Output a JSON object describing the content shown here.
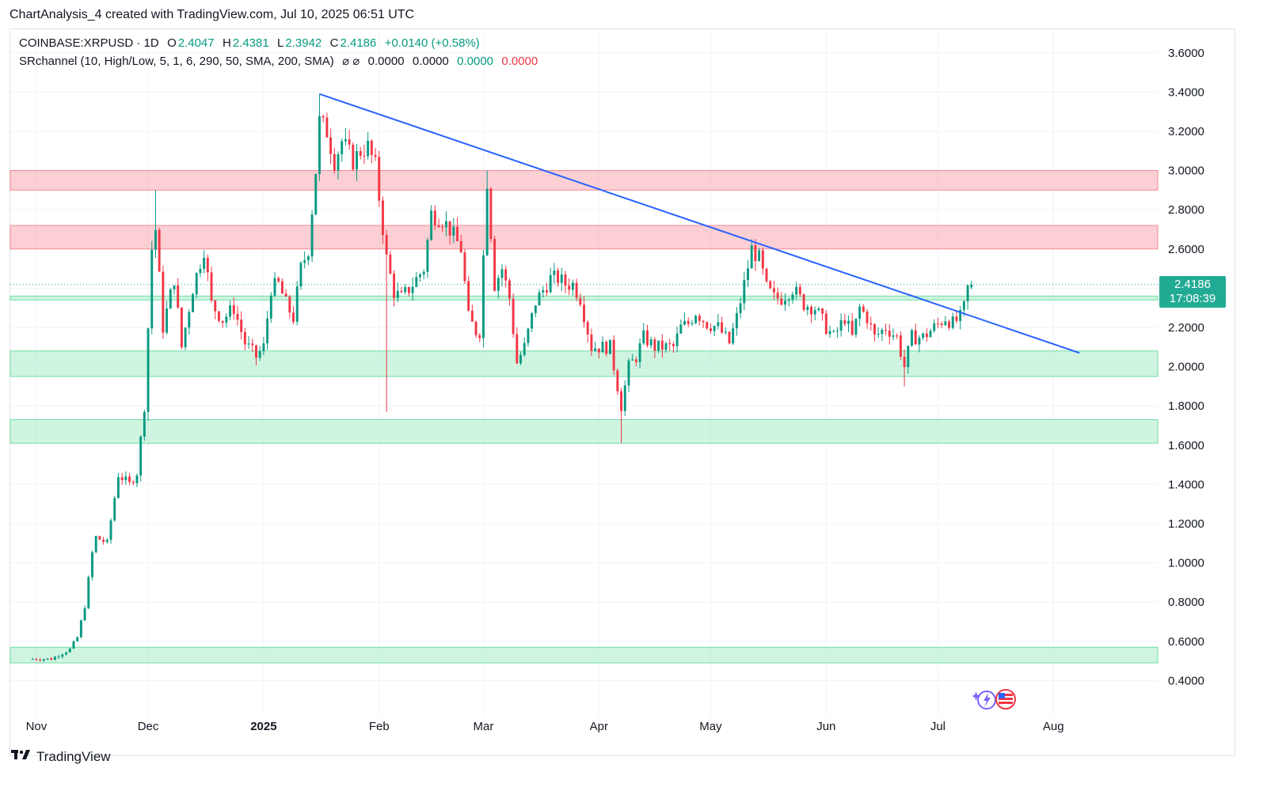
{
  "credit": "ChartAnalysis_4 created with TradingView.com, Jul 10, 2025 06:51 UTC",
  "legend": {
    "symbol": "COINBASE:XRPUSD · 1D",
    "o_label": "O",
    "o_value": "2.4047",
    "h_label": "H",
    "h_value": "2.4381",
    "l_label": "L",
    "l_value": "2.3942",
    "c_label": "C",
    "c_value": "2.4186",
    "change": "+0.0140 (+0.58%)",
    "indicator": "SRchannel (10, High/Low, 5, 1, 6, 290, 50, SMA, 200, SMA)",
    "ind_icons": "⌀ ⌀",
    "ind_v1": "0.0000",
    "ind_v2": "0.0000",
    "ind_v3": "0.0000",
    "ind_v4": "0.0000"
  },
  "price_badge": {
    "price": "2.4186",
    "countdown": "17:08:39"
  },
  "footer": {
    "brand": "TradingView",
    "logo_icon": "tradingview-logo-icon"
  },
  "colors": {
    "up": "#089981",
    "down": "#f23645",
    "trendline": "#2962ff",
    "resistance_zone": "#f7a8ae",
    "support_zone": "#a8ecc8"
  },
  "chart_data": {
    "type": "candlestick",
    "symbol": "COINBASE:XRPUSD",
    "interval": "1D",
    "y_axis": {
      "ticks": [
        "3.6000",
        "3.4000",
        "3.2000",
        "3.0000",
        "2.8000",
        "2.6000",
        "2.4000",
        "2.2000",
        "2.0000",
        "1.8000",
        "1.6000",
        "1.4000",
        "1.2000",
        "1.0000",
        "0.8000",
        "0.6000",
        "0.4000"
      ],
      "ylim": [
        0.22,
        3.72
      ],
      "side": "right"
    },
    "x_axis": {
      "ticks": [
        {
          "label": "Nov",
          "date": "2024-11-01"
        },
        {
          "label": "Dec",
          "date": "2024-12-01"
        },
        {
          "label": "2025",
          "date": "2025-01-01",
          "bold": true
        },
        {
          "label": "Feb",
          "date": "2025-02-01"
        },
        {
          "label": "Mar",
          "date": "2025-03-01"
        },
        {
          "label": "Apr",
          "date": "2025-04-01"
        },
        {
          "label": "May",
          "date": "2025-05-01"
        },
        {
          "label": "Jun",
          "date": "2025-06-01"
        },
        {
          "label": "Jul",
          "date": "2025-07-01"
        },
        {
          "label": "Aug",
          "date": "2025-08-01"
        }
      ],
      "xlim": [
        "2024-10-25",
        "2025-08-29"
      ]
    },
    "last_price": 2.4186,
    "trendline": {
      "from": {
        "date": "2025-01-16",
        "price": 3.39
      },
      "to": {
        "date": "2025-08-08",
        "price": 2.07
      }
    },
    "zones": [
      {
        "kind": "resistance",
        "low": 2.9,
        "high": 3.0
      },
      {
        "kind": "resistance",
        "low": 2.6,
        "high": 2.72
      },
      {
        "kind": "support",
        "low": 2.34,
        "high": 2.36
      },
      {
        "kind": "support",
        "low": 1.95,
        "high": 2.08
      },
      {
        "kind": "support",
        "low": 1.61,
        "high": 1.73
      },
      {
        "kind": "support",
        "low": 0.49,
        "high": 0.57
      }
    ],
    "anchors": [
      [
        "2024-10-31",
        0.51
      ],
      [
        "2024-11-05",
        0.51
      ],
      [
        "2024-11-10",
        0.56
      ],
      [
        "2024-11-12",
        0.62
      ],
      [
        "2024-11-14",
        0.78
      ],
      [
        "2024-11-16",
        1.05
      ],
      [
        "2024-11-17",
        1.13
      ],
      [
        "2024-11-20",
        1.1
      ],
      [
        "2024-11-23",
        1.45
      ],
      [
        "2024-11-26",
        1.4
      ],
      [
        "2024-11-28",
        1.46
      ],
      [
        "2024-11-30",
        1.8
      ],
      [
        "2024-12-02",
        2.6
      ],
      [
        "2024-12-03",
        2.7
      ],
      [
        "2024-12-05",
        2.2
      ],
      [
        "2024-12-08",
        2.45
      ],
      [
        "2024-12-10",
        2.1
      ],
      [
        "2024-12-13",
        2.4
      ],
      [
        "2024-12-16",
        2.6
      ],
      [
        "2024-12-18",
        2.32
      ],
      [
        "2024-12-21",
        2.24
      ],
      [
        "2024-12-24",
        2.3
      ],
      [
        "2024-12-27",
        2.12
      ],
      [
        "2024-12-30",
        2.05
      ],
      [
        "2025-01-01",
        2.1
      ],
      [
        "2025-01-03",
        2.4
      ],
      [
        "2025-01-05",
        2.42
      ],
      [
        "2025-01-07",
        2.32
      ],
      [
        "2025-01-09",
        2.25
      ],
      [
        "2025-01-11",
        2.5
      ],
      [
        "2025-01-13",
        2.6
      ],
      [
        "2025-01-15",
        3.0
      ],
      [
        "2025-01-16",
        3.25
      ],
      [
        "2025-01-18",
        3.2
      ],
      [
        "2025-01-20",
        3.05
      ],
      [
        "2025-01-22",
        3.15
      ],
      [
        "2025-01-25",
        3.05
      ],
      [
        "2025-01-27",
        3.1
      ],
      [
        "2025-01-29",
        3.12
      ],
      [
        "2025-01-31",
        3.02
      ],
      [
        "2025-02-03",
        2.55
      ],
      [
        "2025-02-05",
        2.38
      ],
      [
        "2025-02-07",
        2.35
      ],
      [
        "2025-02-10",
        2.42
      ],
      [
        "2025-02-13",
        2.5
      ],
      [
        "2025-02-15",
        2.78
      ],
      [
        "2025-02-18",
        2.75
      ],
      [
        "2025-02-20",
        2.7
      ],
      [
        "2025-02-23",
        2.6
      ],
      [
        "2025-02-25",
        2.25
      ],
      [
        "2025-02-27",
        2.18
      ],
      [
        "2025-02-28",
        2.18
      ],
      [
        "2025-03-02",
        2.95
      ],
      [
        "2025-03-04",
        2.42
      ],
      [
        "2025-03-06",
        2.5
      ],
      [
        "2025-03-08",
        2.35
      ],
      [
        "2025-03-10",
        2.02
      ],
      [
        "2025-03-12",
        2.1
      ],
      [
        "2025-03-15",
        2.33
      ],
      [
        "2025-03-19",
        2.45
      ],
      [
        "2025-03-21",
        2.45
      ],
      [
        "2025-03-23",
        2.42
      ],
      [
        "2025-03-25",
        2.42
      ],
      [
        "2025-03-27",
        2.35
      ],
      [
        "2025-03-30",
        2.1
      ],
      [
        "2025-04-02",
        2.1
      ],
      [
        "2025-04-04",
        2.1
      ],
      [
        "2025-04-06",
        1.9
      ],
      [
        "2025-04-07",
        1.8
      ],
      [
        "2025-04-09",
        2.0
      ],
      [
        "2025-04-11",
        2.05
      ],
      [
        "2025-04-13",
        2.15
      ],
      [
        "2025-04-16",
        2.1
      ],
      [
        "2025-04-19",
        2.1
      ],
      [
        "2025-04-21",
        2.1
      ],
      [
        "2025-04-23",
        2.2
      ],
      [
        "2025-04-25",
        2.22
      ],
      [
        "2025-04-27",
        2.28
      ],
      [
        "2025-04-30",
        2.22
      ],
      [
        "2025-05-03",
        2.2
      ],
      [
        "2025-05-06",
        2.12
      ],
      [
        "2025-05-08",
        2.25
      ],
      [
        "2025-05-10",
        2.42
      ],
      [
        "2025-05-12",
        2.6
      ],
      [
        "2025-05-14",
        2.55
      ],
      [
        "2025-05-16",
        2.4
      ],
      [
        "2025-05-18",
        2.35
      ],
      [
        "2025-05-20",
        2.35
      ],
      [
        "2025-05-23",
        2.4
      ],
      [
        "2025-05-26",
        2.32
      ],
      [
        "2025-05-29",
        2.3
      ],
      [
        "2025-06-01",
        2.2
      ],
      [
        "2025-06-03",
        2.15
      ],
      [
        "2025-06-06",
        2.25
      ],
      [
        "2025-06-08",
        2.15
      ],
      [
        "2025-06-10",
        2.3
      ],
      [
        "2025-06-12",
        2.25
      ],
      [
        "2025-06-14",
        2.15
      ],
      [
        "2025-06-17",
        2.2
      ],
      [
        "2025-06-20",
        2.15
      ],
      [
        "2025-06-22",
        2.0
      ],
      [
        "2025-06-24",
        2.15
      ],
      [
        "2025-06-27",
        2.15
      ],
      [
        "2025-06-30",
        2.2
      ],
      [
        "2025-07-03",
        2.25
      ],
      [
        "2025-07-05",
        2.22
      ],
      [
        "2025-07-07",
        2.25
      ],
      [
        "2025-07-08",
        2.3
      ],
      [
        "2025-07-09",
        2.4
      ],
      [
        "2025-07-10",
        2.4186
      ]
    ],
    "extremes": [
      {
        "date": "2024-12-03",
        "high": 2.9
      },
      {
        "date": "2025-01-16",
        "high": 3.39
      },
      {
        "date": "2025-02-03",
        "low": 1.77
      },
      {
        "date": "2025-03-02",
        "high": 3.0
      },
      {
        "date": "2025-04-07",
        "low": 1.61
      },
      {
        "date": "2025-05-12",
        "high": 2.65
      },
      {
        "date": "2025-06-22",
        "low": 1.9
      }
    ]
  }
}
